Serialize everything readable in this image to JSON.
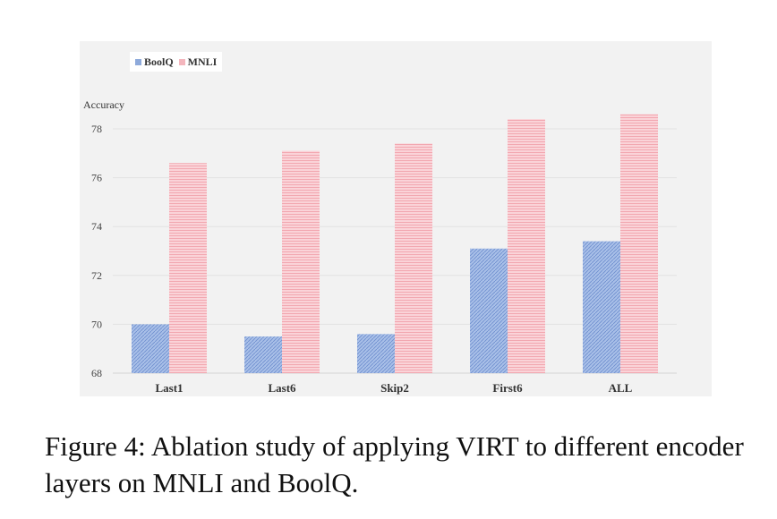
{
  "chart_data": {
    "type": "bar",
    "categories": [
      "Last1",
      "Last6",
      "Skip2",
      "First6",
      "ALL"
    ],
    "series": [
      {
        "name": "BoolQ",
        "values": [
          70.0,
          69.5,
          69.6,
          73.1,
          73.4
        ],
        "color": "#8eaadb"
      },
      {
        "name": "MNLI",
        "values": [
          76.6,
          77.1,
          77.4,
          78.4,
          78.6
        ],
        "color": "#f4b6bd"
      }
    ],
    "ylabel": "Accuracy",
    "ylim": [
      68,
      78
    ],
    "yticks": [
      68,
      70,
      72,
      74,
      76,
      78
    ],
    "grid": true,
    "legend_position": "top-left"
  },
  "caption": "Figure 4: Ablation study of applying VIRT to different encoder layers on MNLI and BoolQ."
}
